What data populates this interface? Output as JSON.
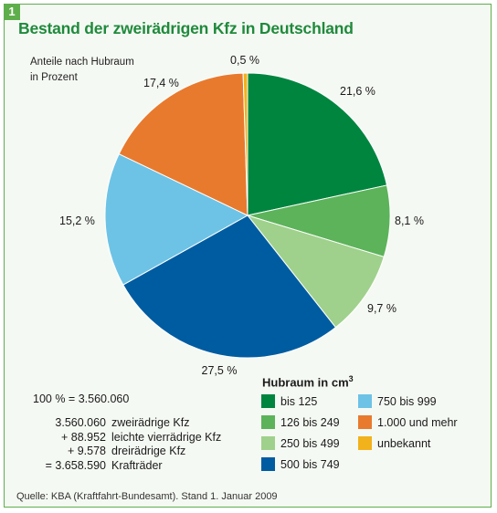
{
  "figure": {
    "number": "1",
    "title": "Bestand der zweirädrigen Kfz in Deutschland",
    "subtitle_line1": "Anteile nach Hubraum",
    "subtitle_line2": "in Prozent"
  },
  "chart_data": {
    "type": "pie",
    "title": "Bestand der zweirädrigen Kfz in Deutschland",
    "subtitle": "Anteile nach Hubraum in Prozent",
    "unit": "%",
    "legend_title": "Hubraum in cm",
    "legend_placement": "bottom-right",
    "slices": [
      {
        "category": "bis 125",
        "value": 21.6,
        "label": "21,6 %",
        "color": "#00853f"
      },
      {
        "category": "126 bis 249",
        "value": 8.1,
        "label": "8,1 %",
        "color": "#5cb35a"
      },
      {
        "category": "250 bis 499",
        "value": 9.7,
        "label": "9,7 %",
        "color": "#9fd18c"
      },
      {
        "category": "500 bis 749",
        "value": 27.5,
        "label": "27,5 %",
        "color": "#005ca1"
      },
      {
        "category": "750 bis 999",
        "value": 15.2,
        "label": "15,2 %",
        "color": "#6dc3e6"
      },
      {
        "category": "1.000 und mehr",
        "value": 17.4,
        "label": "17,4 %",
        "color": "#e87a2e"
      },
      {
        "category": "unbekannt",
        "value": 0.5,
        "label": "0,5 %",
        "color": "#f2b21c"
      }
    ]
  },
  "legend": {
    "title": "Hubraum in cm",
    "title_sup": "3",
    "items": [
      {
        "label": "bis 125",
        "color": "#00853f"
      },
      {
        "label": "126 bis 249",
        "color": "#5cb35a"
      },
      {
        "label": "250 bis 499",
        "color": "#9fd18c"
      },
      {
        "label": "500 bis 749",
        "color": "#005ca1"
      },
      {
        "label": "750 bis 999",
        "color": "#6dc3e6"
      },
      {
        "label": "1.000 und mehr",
        "color": "#e87a2e"
      },
      {
        "label": "unbekannt",
        "color": "#f2b21c"
      }
    ]
  },
  "totals": {
    "hundred_percent": "100 % = 3.560.060",
    "calculation": [
      {
        "number": "3.560.060",
        "text": "zweirädrige Kfz"
      },
      {
        "number": "+ 88.952",
        "text": "leichte vierrädrige Kfz"
      },
      {
        "number": "+ 9.578",
        "text": "dreirädrige Kfz"
      },
      {
        "number": "= 3.658.590",
        "text": "Krafträder"
      }
    ]
  },
  "source": "Quelle: KBA (Kraftfahrt-Bundesamt). Stand 1. Januar 2009",
  "colors": {
    "frame_border": "#5fae4c",
    "title": "#1f8a3c",
    "background": "#f5f9f3"
  }
}
